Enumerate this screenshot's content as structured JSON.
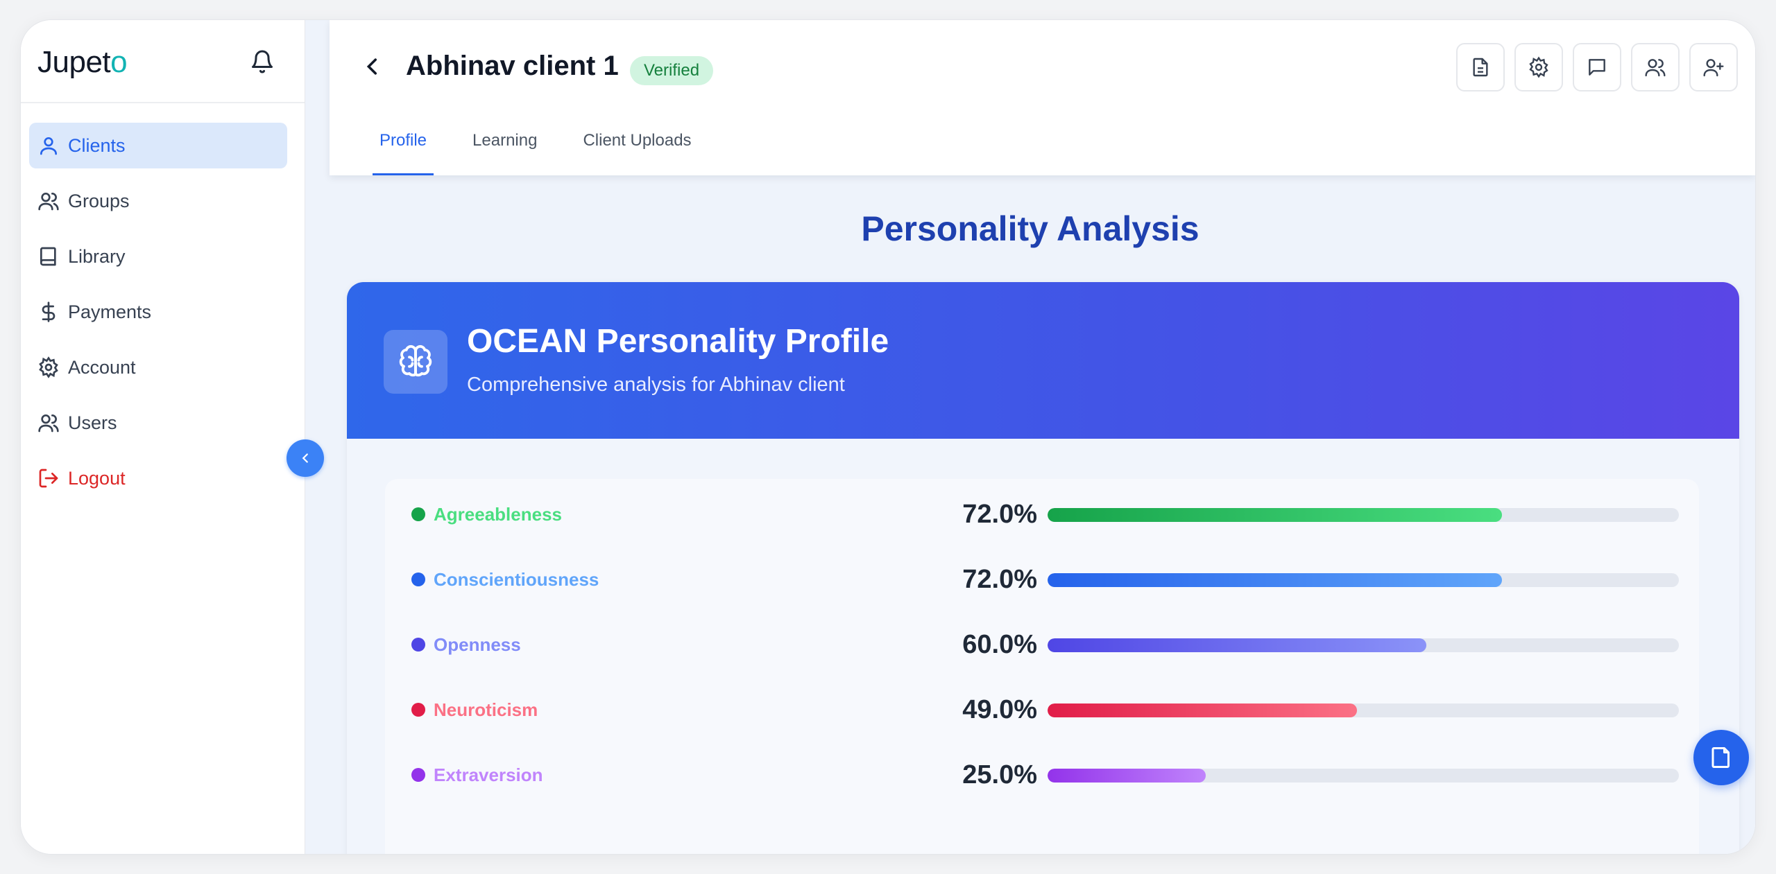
{
  "app": {
    "logo_main": "Jupet",
    "logo_accent": "o"
  },
  "sidebar": {
    "items": [
      {
        "label": "Clients",
        "icon": "user-icon",
        "active": true
      },
      {
        "label": "Groups",
        "icon": "users-icon"
      },
      {
        "label": "Library",
        "icon": "book-icon"
      },
      {
        "label": "Payments",
        "icon": "dollar-icon"
      },
      {
        "label": "Account",
        "icon": "gear-icon"
      },
      {
        "label": "Users",
        "icon": "users-icon"
      },
      {
        "label": "Logout",
        "icon": "logout-icon",
        "color": "#dc2626"
      }
    ]
  },
  "header": {
    "client_name": "Abhinav client 1",
    "badge": "Verified",
    "actions": [
      "document-icon",
      "gear-icon",
      "chat-icon",
      "users-icon",
      "user-plus-icon"
    ]
  },
  "tabs": [
    {
      "label": "Profile",
      "active": true
    },
    {
      "label": "Learning"
    },
    {
      "label": "Client Uploads"
    }
  ],
  "main": {
    "section_title": "Personality Analysis",
    "card_title": "OCEAN Personality Profile",
    "card_subtitle": "Comprehensive analysis for Abhinav client"
  },
  "traits": [
    {
      "name": "Agreeableness",
      "value_label": "72.0%",
      "fraction": 0.72,
      "dot": "#16a34a",
      "text_color": "#4ade80",
      "fill_from": "#16a34a",
      "fill_to": "#4ade80"
    },
    {
      "name": "Conscientiousness",
      "value_label": "72.0%",
      "fraction": 0.72,
      "dot": "#2563eb",
      "text_color": "#60a5fa",
      "fill_from": "#2563eb",
      "fill_to": "#60a5fa"
    },
    {
      "name": "Openness",
      "value_label": "60.0%",
      "fraction": 0.6,
      "dot": "#4f46e5",
      "text_color": "#818cf8",
      "fill_from": "#4f46e5",
      "fill_to": "#8b93f8"
    },
    {
      "name": "Neuroticism",
      "value_label": "49.0%",
      "fraction": 0.49,
      "dot": "#e11d48",
      "text_color": "#fb7185",
      "fill_from": "#e11d48",
      "fill_to": "#fb7185"
    },
    {
      "name": "Extraversion",
      "value_label": "25.0%",
      "fraction": 0.25,
      "dot": "#9333ea",
      "text_color": "#c084fc",
      "fill_from": "#9333ea",
      "fill_to": "#c084fc"
    }
  ]
}
